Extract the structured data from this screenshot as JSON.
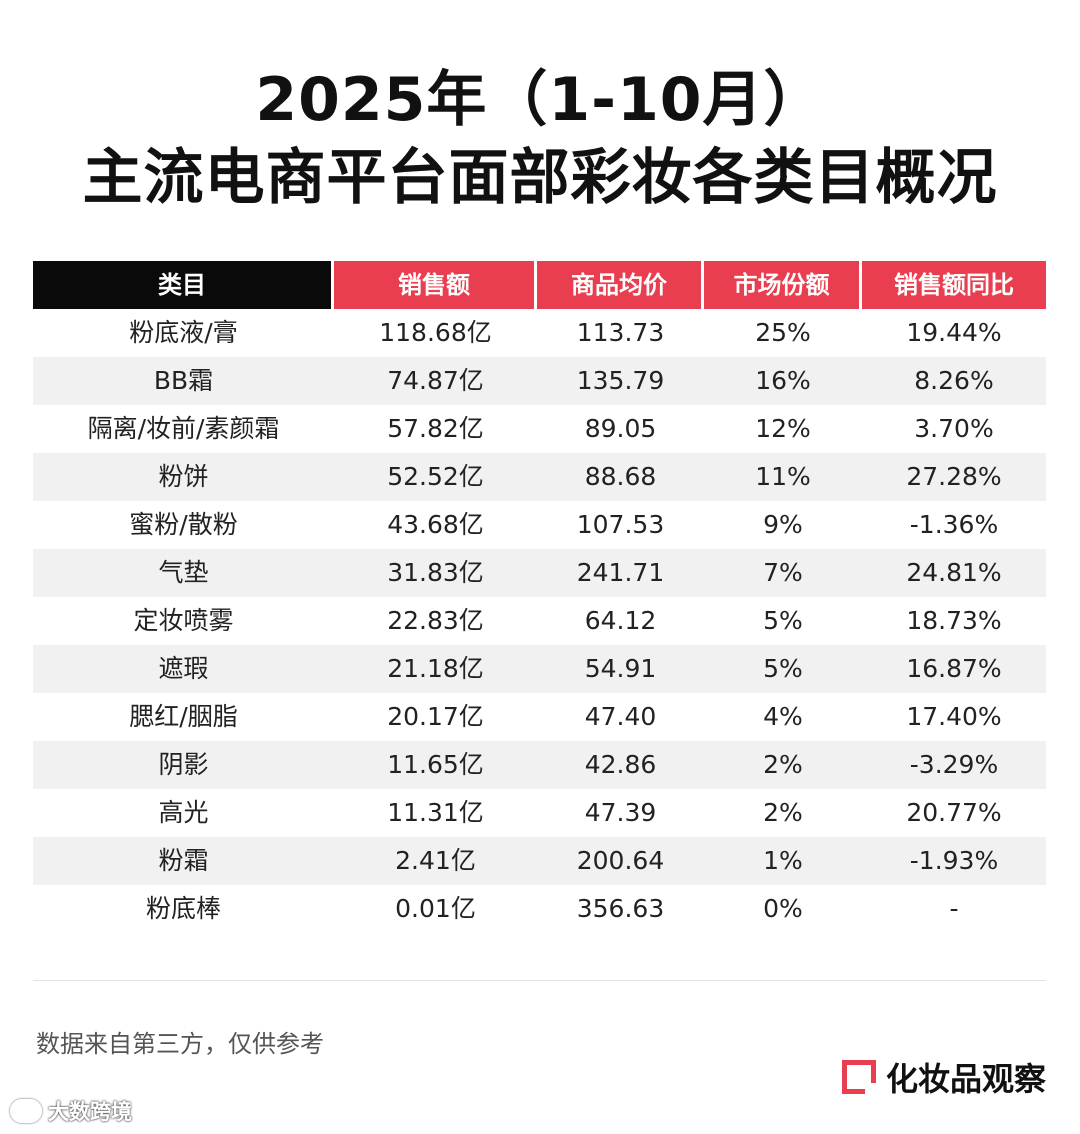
{
  "title_line1": "2025年（1-10月）",
  "title_line2": "主流电商平台面部彩妆各类目概况",
  "chart_data": {
    "type": "table",
    "columns": [
      "类目",
      "销售额",
      "商品均价",
      "市场份额",
      "销售额同比"
    ],
    "rows": [
      [
        "粉底液/膏",
        "118.68亿",
        "113.73",
        "25%",
        "19.44%"
      ],
      [
        "BB霜",
        "74.87亿",
        "135.79",
        "16%",
        "8.26%"
      ],
      [
        "隔离/妆前/素颜霜",
        "57.82亿",
        "89.05",
        "12%",
        "3.70%"
      ],
      [
        "粉饼",
        "52.52亿",
        "88.68",
        "11%",
        "27.28%"
      ],
      [
        "蜜粉/散粉",
        "43.68亿",
        "107.53",
        "9%",
        "-1.36%"
      ],
      [
        "气垫",
        "31.83亿",
        "241.71",
        "7%",
        "24.81%"
      ],
      [
        "定妆喷雾",
        "22.83亿",
        "64.12",
        "5%",
        "18.73%"
      ],
      [
        "遮瑕",
        "21.18亿",
        "54.91",
        "5%",
        "16.87%"
      ],
      [
        "腮红/胭脂",
        "20.17亿",
        "47.40",
        "4%",
        "17.40%"
      ],
      [
        "阴影",
        "11.65亿",
        "42.86",
        "2%",
        "-3.29%"
      ],
      [
        "高光",
        "11.31亿",
        "47.39",
        "2%",
        "20.77%"
      ],
      [
        "粉霜",
        "2.41亿",
        "200.64",
        "1%",
        "-1.93%"
      ],
      [
        "粉底棒",
        "0.01亿",
        "356.63",
        "0%",
        "-"
      ]
    ]
  },
  "source_note": "数据来自第三方，仅供参考",
  "brand_name": "化妆品观察",
  "watermark_text": "大数跨境",
  "colors": {
    "header_black": "#0a0a0a",
    "header_red": "#e83e4f",
    "alt_row": "#f1f1f1"
  }
}
